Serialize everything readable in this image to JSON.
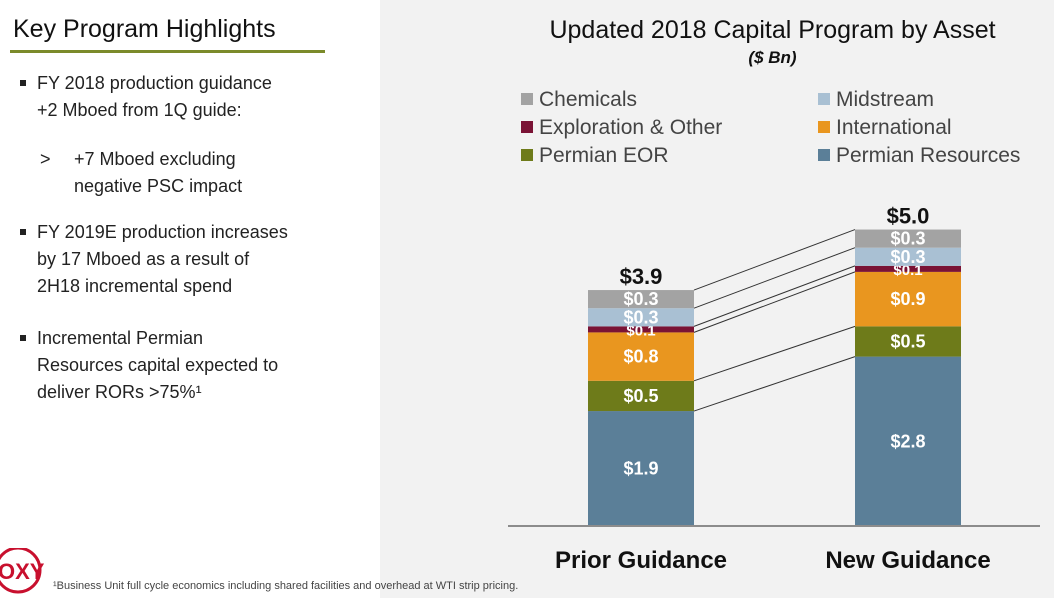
{
  "highlights": {
    "title": "Key Program Highlights",
    "bullets": [
      {
        "lines": [
          "FY 2018 production guidance",
          "+2 Mboed from 1Q guide:"
        ]
      },
      {
        "lines": [
          "FY 2019E production increases",
          "by 17 Mboed as a result of",
          "2H18 incremental spend"
        ]
      },
      {
        "lines": [
          "Incremental Permian",
          "Resources capital expected to",
          "deliver RORs >75%¹"
        ]
      }
    ],
    "subbullet": {
      "marker": ">",
      "lines": [
        "+7 Mboed excluding",
        "negative PSC impact"
      ]
    }
  },
  "footnote": "¹Business Unit full cycle economics including shared facilities and overhead at WTI strip pricing.",
  "logo": {
    "text": "OXY",
    "color": "#c8102e"
  },
  "chart_data": {
    "type": "bar",
    "stacked": true,
    "title": "Updated 2018 Capital Program by Asset",
    "subtitle": "($ Bn)",
    "categories": [
      "Prior Guidance",
      "New Guidance"
    ],
    "totals": [
      "$3.9",
      "$5.0"
    ],
    "total_values": [
      3.9,
      5.0
    ],
    "series": [
      {
        "name": "Permian Resources",
        "color": "#5b7f98",
        "values": [
          1.9,
          2.8
        ],
        "labels": [
          "$1.9",
          "$2.8"
        ]
      },
      {
        "name": "Permian EOR",
        "color": "#6e7b1a",
        "values": [
          0.5,
          0.5
        ],
        "labels": [
          "$0.5",
          "$0.5"
        ]
      },
      {
        "name": "International",
        "color": "#e9961f",
        "values": [
          0.8,
          0.9
        ],
        "labels": [
          "$0.8",
          "$0.9"
        ]
      },
      {
        "name": "Exploration & Other",
        "color": "#7a1335",
        "values": [
          0.1,
          0.1
        ],
        "labels": [
          "$0.1",
          "$0.1"
        ]
      },
      {
        "name": "Midstream",
        "color": "#a9c0d3",
        "values": [
          0.3,
          0.3
        ],
        "labels": [
          "$0.3",
          "$0.3"
        ]
      },
      {
        "name": "Chemicals",
        "color": "#a3a3a3",
        "values": [
          0.3,
          0.3
        ],
        "labels": [
          "$0.3",
          "$0.3"
        ]
      }
    ],
    "legend": {
      "placement": "top",
      "order": [
        "Chemicals",
        "Midstream",
        "Exploration & Other",
        "International",
        "Permian EOR",
        "Permian Resources"
      ]
    },
    "grid": false
  }
}
